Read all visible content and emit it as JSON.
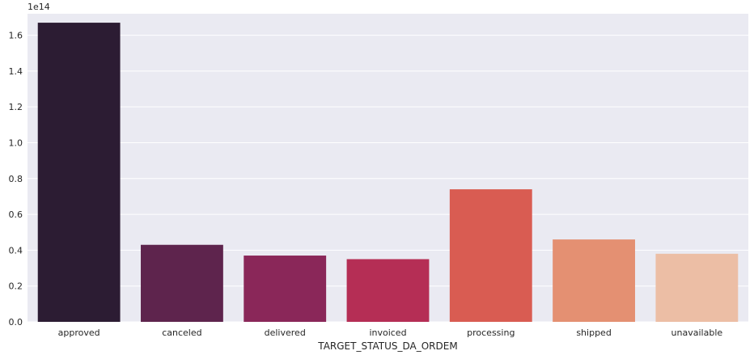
{
  "chart_data": {
    "type": "bar",
    "categories": [
      "approved",
      "canceled",
      "delivered",
      "invoiced",
      "processing",
      "shipped",
      "unavailable"
    ],
    "values": [
      1.67,
      0.43,
      0.37,
      0.35,
      0.74,
      0.46,
      0.38
    ],
    "colors": [
      "#2c1c33",
      "#5e244d",
      "#8a2759",
      "#b52e55",
      "#d95c52",
      "#e49072",
      "#ecbea5"
    ],
    "title": "",
    "xlabel": "TARGET_STATUS_DA_ORDEM",
    "ylabel": "",
    "y_offset_label": "1e14",
    "ylim": [
      0,
      1.72
    ],
    "yticks": [
      0.0,
      0.2,
      0.4,
      0.6,
      0.8,
      1.0,
      1.2,
      1.4,
      1.6
    ],
    "ytick_labels": [
      "0.0",
      "0.2",
      "0.4",
      "0.6",
      "0.8",
      "1.0",
      "1.2",
      "1.4",
      "1.6"
    ],
    "grid": true,
    "background": "#eaeaf2"
  }
}
